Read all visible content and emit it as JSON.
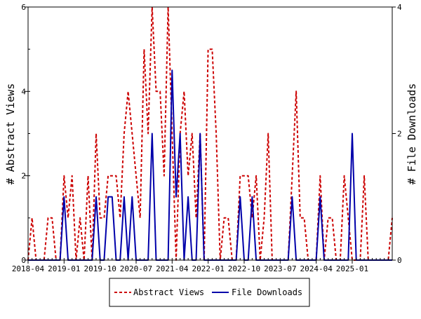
{
  "chart_data": {
    "type": "line",
    "title": "",
    "xlabel": "",
    "ylabel": "# Abstract Views",
    "y2label": "# File Downloads",
    "xlim": [
      "2018-04",
      "2025-11"
    ],
    "ylim": [
      0,
      6
    ],
    "y2lim": [
      0,
      4
    ],
    "x_tick_labels": [
      "2018-04",
      "2019-01",
      "2019-10",
      "2020-07",
      "2021-04",
      "2022-01",
      "2022-10",
      "2023-07",
      "2024-04",
      "2025-01"
    ],
    "y_tick_labels": [
      "0",
      "2",
      "4",
      "6"
    ],
    "y2_tick_labels": [
      "0",
      "2",
      "4"
    ],
    "grid": false,
    "legend_position": "bottom-center",
    "colors": {
      "abstract_views": "#cc0000",
      "file_downloads": "#0000aa"
    },
    "x": [
      "2018-04",
      "2018-05",
      "2018-06",
      "2018-07",
      "2018-08",
      "2018-09",
      "2018-10",
      "2018-11",
      "2018-12",
      "2019-01",
      "2019-02",
      "2019-03",
      "2019-04",
      "2019-05",
      "2019-06",
      "2019-07",
      "2019-08",
      "2019-09",
      "2019-10",
      "2019-11",
      "2019-12",
      "2020-01",
      "2020-02",
      "2020-03",
      "2020-04",
      "2020-05",
      "2020-06",
      "2020-07",
      "2020-08",
      "2020-09",
      "2020-10",
      "2020-11",
      "2020-12",
      "2021-01",
      "2021-02",
      "2021-03",
      "2021-04",
      "2021-05",
      "2021-06",
      "2021-07",
      "2021-08",
      "2021-09",
      "2021-10",
      "2021-11",
      "2021-12",
      "2022-01",
      "2022-02",
      "2022-03",
      "2022-04",
      "2022-05",
      "2022-06",
      "2022-07",
      "2022-08",
      "2022-09",
      "2022-10",
      "2022-11",
      "2022-12",
      "2023-01",
      "2023-02",
      "2023-03",
      "2023-04",
      "2023-05",
      "2023-06",
      "2023-07",
      "2023-08",
      "2023-09",
      "2023-10",
      "2023-11",
      "2023-12",
      "2024-01",
      "2024-02",
      "2024-03",
      "2024-04",
      "2024-05",
      "2024-06",
      "2024-07",
      "2024-08",
      "2024-09",
      "2024-10",
      "2024-11",
      "2024-12",
      "2025-01",
      "2025-02",
      "2025-03",
      "2025-04",
      "2025-05",
      "2025-06",
      "2025-07",
      "2025-08",
      "2025-09",
      "2025-10",
      "2025-11"
    ],
    "series": [
      {
        "name": "Abstract Views",
        "axis": "left",
        "style": "dashed",
        "values": [
          0,
          1,
          0,
          0,
          0,
          1,
          1,
          0,
          0,
          2,
          1,
          2,
          0,
          1,
          0,
          2,
          0,
          3,
          1,
          1,
          2,
          2,
          2,
          1,
          3,
          4,
          3,
          2,
          1,
          5,
          3,
          6,
          4,
          4,
          2,
          6,
          3,
          0,
          3,
          4,
          2,
          3,
          1,
          3,
          0,
          5,
          5,
          3,
          0,
          1,
          1,
          0,
          0,
          2,
          2,
          2,
          1,
          2,
          0,
          1,
          3,
          0,
          0,
          0,
          0,
          0,
          2,
          4,
          1,
          1,
          0,
          0,
          0,
          2,
          0,
          1,
          1,
          0,
          0,
          2,
          1,
          0,
          0,
          0,
          2,
          0,
          0,
          0,
          0,
          0,
          0,
          1
        ]
      },
      {
        "name": "File Downloads",
        "axis": "right",
        "style": "solid",
        "values": [
          0,
          0,
          0,
          0,
          0,
          0,
          0,
          0,
          0,
          1,
          0,
          0,
          0,
          0,
          0,
          0,
          0,
          1,
          0,
          0,
          1,
          1,
          0,
          0,
          1,
          0,
          1,
          0,
          0,
          0,
          0,
          2,
          0,
          0,
          0,
          0,
          3,
          1,
          2,
          0,
          1,
          0,
          0,
          2,
          0,
          0,
          0,
          0,
          0,
          0,
          0,
          0,
          0,
          1,
          0,
          0,
          1,
          0,
          0,
          0,
          0,
          0,
          0,
          0,
          0,
          0,
          1,
          0,
          0,
          0,
          0,
          0,
          0,
          1,
          0,
          0,
          0,
          0,
          0,
          0,
          0,
          2,
          0,
          0,
          0,
          0,
          0,
          0,
          0,
          0,
          0,
          0
        ]
      }
    ]
  },
  "legend": {
    "items": [
      {
        "label": "Abstract Views",
        "color": "#cc0000",
        "style": "dashed"
      },
      {
        "label": "File Downloads",
        "color": "#0000aa",
        "style": "solid"
      }
    ]
  }
}
